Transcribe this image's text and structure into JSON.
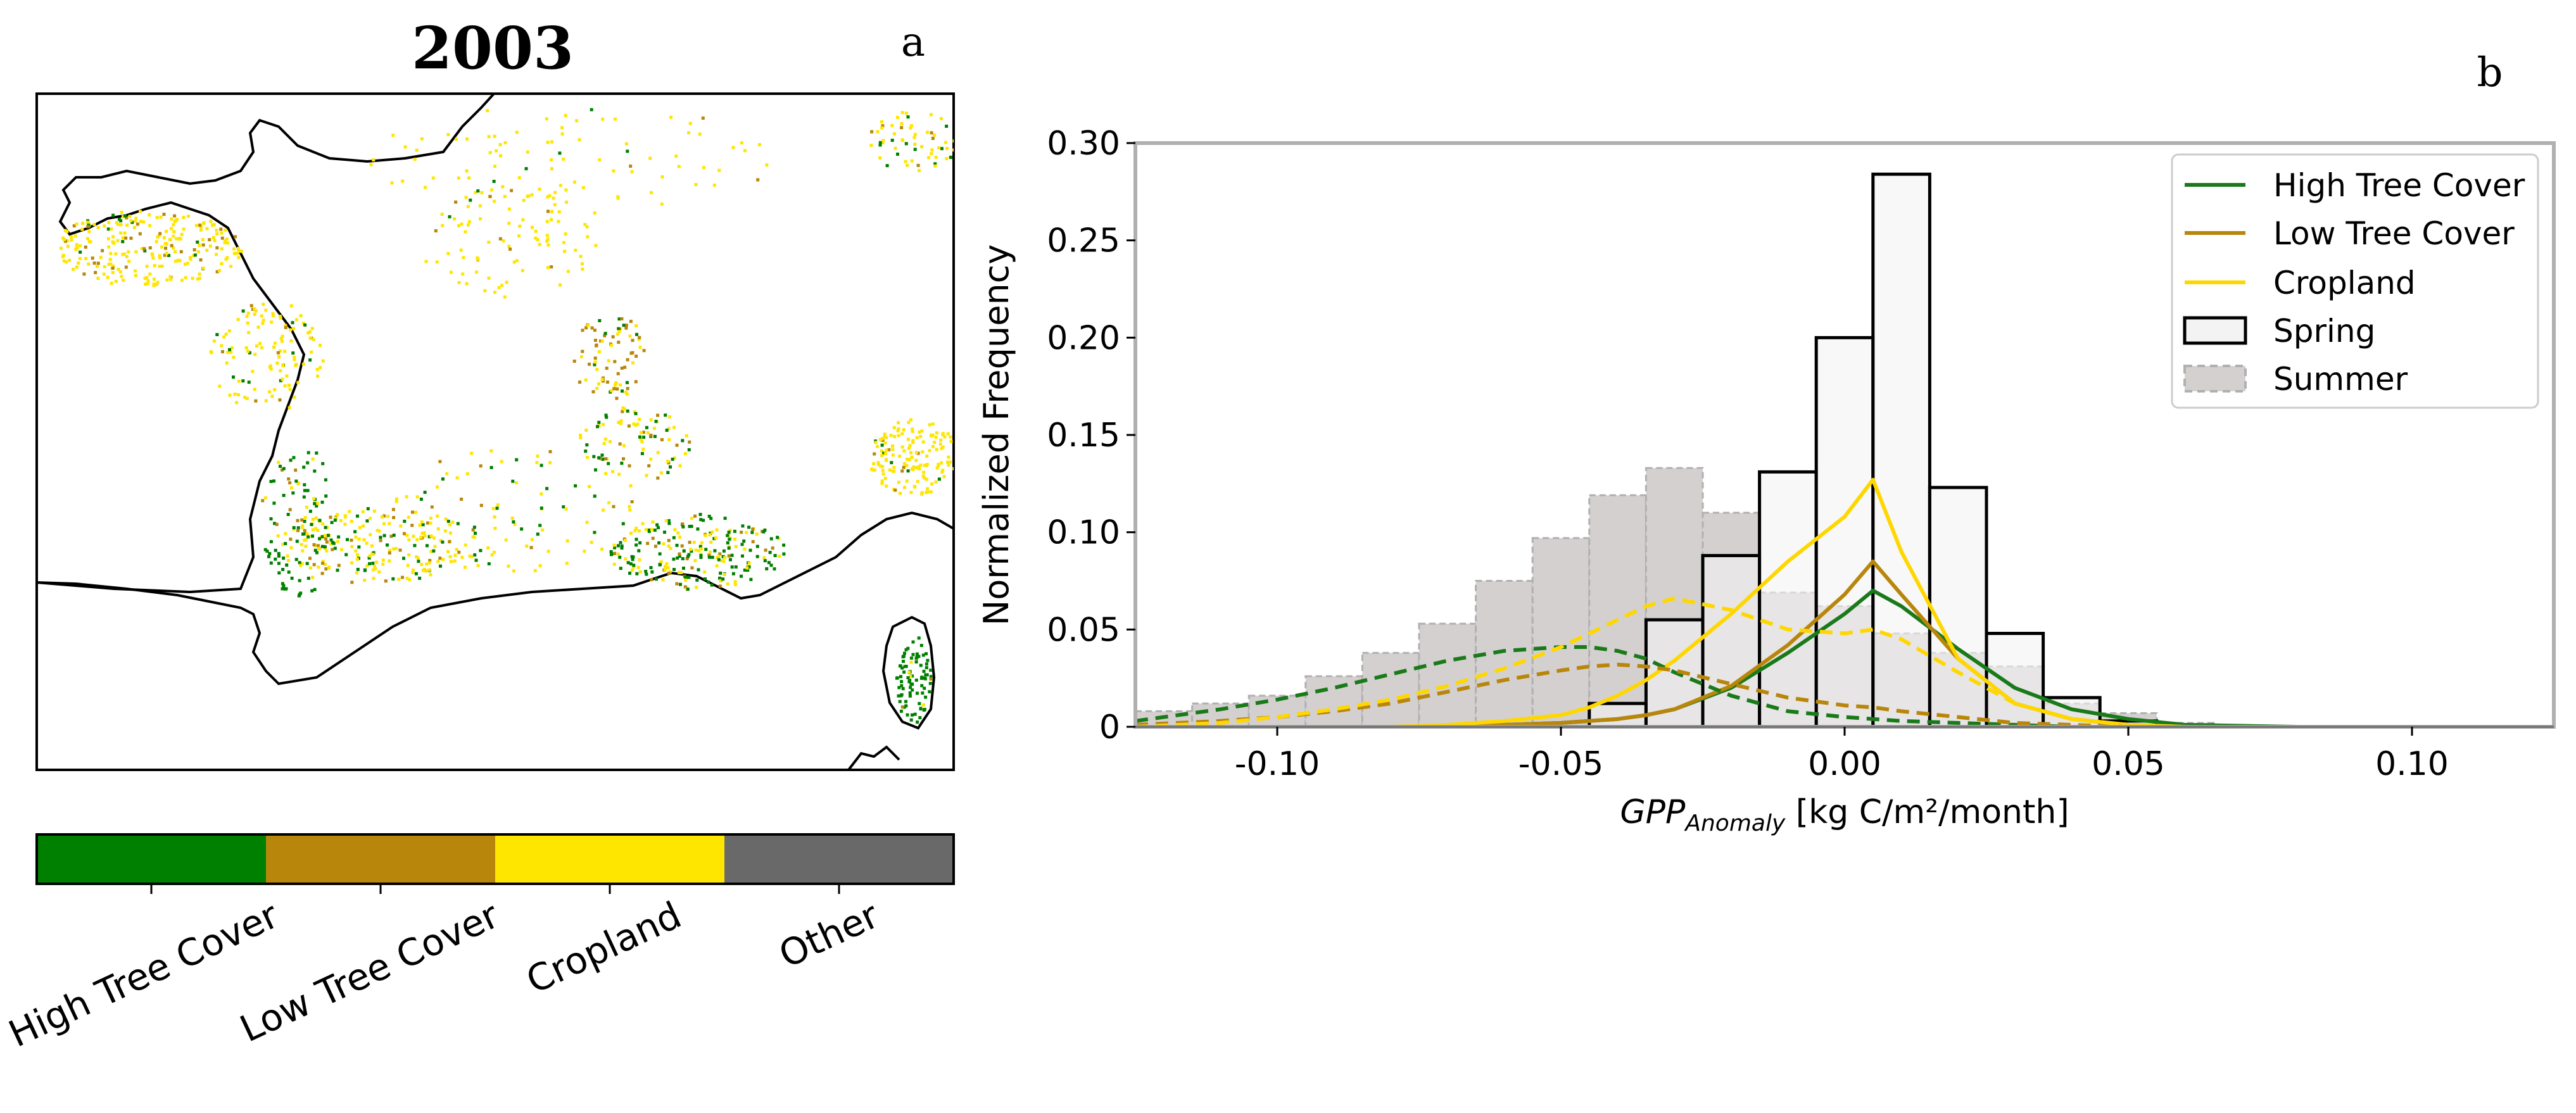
{
  "chart_data": [
    {
      "type": "map",
      "panel_label": "a",
      "title": "2003",
      "colorbar": {
        "categories": [
          {
            "label": "High Tree Cover",
            "color": "#008000"
          },
          {
            "label": "Low Tree Cover",
            "color": "#b8860b"
          },
          {
            "label": "Cropland",
            "color": "#ffe600"
          },
          {
            "label": "Other",
            "color": "#696969"
          }
        ]
      }
    },
    {
      "type": "bar",
      "panel_label": "b",
      "xlabel_main": "GPP",
      "xlabel_sub": "Anomaly",
      "xlabel_units": " [kg C/m²/month]",
      "ylabel": "Normalized  Frequency",
      "xlim": [
        -0.125,
        0.125
      ],
      "ylim": [
        0,
        0.3
      ],
      "xticks": [
        -0.1,
        -0.05,
        0.0,
        0.05,
        0.1
      ],
      "xtick_labels": [
        "-0.10",
        "-0.05",
        "0.00",
        "0.05",
        "0.10"
      ],
      "yticks": [
        0,
        0.05,
        0.1,
        0.15,
        0.2,
        0.25,
        0.3
      ],
      "ytick_labels": [
        "0",
        "0.05",
        "0.10",
        "0.15",
        "0.20",
        "0.25",
        "0.30"
      ],
      "bin_width": 0.01,
      "bin_starts": [
        -0.125,
        -0.115,
        -0.105,
        -0.095,
        -0.085,
        -0.075,
        -0.065,
        -0.055,
        -0.045,
        -0.035,
        -0.025,
        -0.015,
        -0.005,
        0.005,
        0.015,
        0.025,
        0.035,
        0.045,
        0.055,
        0.065
      ],
      "spring": [
        0,
        0,
        0,
        0,
        0,
        0,
        0,
        0,
        0.012,
        0.055,
        0.088,
        0.131,
        0.2,
        0.284,
        0.123,
        0.048,
        0.015,
        0.003,
        0.001,
        0
      ],
      "summer": [
        0.008,
        0.012,
        0.016,
        0.026,
        0.038,
        0.053,
        0.075,
        0.097,
        0.119,
        0.133,
        0.11,
        0.069,
        0.062,
        0.048,
        0.038,
        0.031,
        0.012,
        0.007,
        0.002,
        0
      ],
      "curve_x": [
        -0.125,
        -0.11,
        -0.1,
        -0.09,
        -0.08,
        -0.07,
        -0.06,
        -0.05,
        -0.045,
        -0.04,
        -0.035,
        -0.03,
        -0.02,
        -0.01,
        0.0,
        0.005,
        0.01,
        0.02,
        0.03,
        0.04,
        0.05,
        0.06,
        0.08,
        0.1,
        0.125
      ],
      "series": [
        {
          "name": "High Tree Cover",
          "color": "#1a7a1a",
          "style": "solid",
          "values": [
            0,
            0,
            0,
            0,
            0,
            0,
            0.001,
            0.002,
            0.003,
            0.004,
            0.006,
            0.009,
            0.02,
            0.038,
            0.058,
            0.07,
            0.062,
            0.04,
            0.02,
            0.009,
            0.004,
            0.001,
            0,
            0,
            0
          ]
        },
        {
          "name": "Low Tree Cover",
          "color": "#b8860b",
          "style": "solid",
          "values": [
            0,
            0,
            0,
            0,
            0,
            0,
            0.001,
            0.002,
            0.003,
            0.004,
            0.006,
            0.009,
            0.021,
            0.042,
            0.068,
            0.085,
            0.068,
            0.035,
            0.012,
            0.004,
            0.001,
            0,
            0,
            0,
            0
          ]
        },
        {
          "name": "Cropland",
          "color": "#ffd700",
          "style": "solid",
          "values": [
            0,
            0,
            0,
            0,
            0,
            0.001,
            0.003,
            0.006,
            0.01,
            0.016,
            0.024,
            0.034,
            0.058,
            0.085,
            0.108,
            0.127,
            0.09,
            0.035,
            0.012,
            0.004,
            0.001,
            0,
            0,
            0,
            0
          ]
        },
        {
          "name": "High Tree Cover (Summer)",
          "color": "#1a7a1a",
          "style": "dashed",
          "values": [
            0.003,
            0.009,
            0.014,
            0.02,
            0.027,
            0.034,
            0.039,
            0.041,
            0.041,
            0.039,
            0.035,
            0.028,
            0.016,
            0.008,
            0.005,
            0.004,
            0.003,
            0.002,
            0.001,
            0,
            0,
            0,
            0,
            0,
            0
          ]
        },
        {
          "name": "Low Tree Cover (Summer)",
          "color": "#b8860b",
          "style": "dashed",
          "values": [
            0.001,
            0.003,
            0.005,
            0.008,
            0.012,
            0.018,
            0.024,
            0.029,
            0.031,
            0.032,
            0.031,
            0.029,
            0.022,
            0.015,
            0.011,
            0.01,
            0.008,
            0.005,
            0.002,
            0.001,
            0,
            0,
            0,
            0,
            0
          ]
        },
        {
          "name": "Cropland (Summer)",
          "color": "#ffd700",
          "style": "dashed",
          "values": [
            0,
            0.002,
            0.005,
            0.009,
            0.014,
            0.021,
            0.03,
            0.041,
            0.048,
            0.055,
            0.062,
            0.066,
            0.06,
            0.05,
            0.048,
            0.05,
            0.045,
            0.028,
            0.012,
            0.004,
            0.001,
            0,
            0,
            0,
            0
          ]
        }
      ],
      "legend": [
        {
          "label": "High Tree Cover",
          "kind": "line",
          "color": "#1a7a1a"
        },
        {
          "label": "Low Tree Cover",
          "kind": "line",
          "color": "#b8860b"
        },
        {
          "label": "Cropland",
          "kind": "line",
          "color": "#ffd700"
        },
        {
          "label": "Spring",
          "kind": "box",
          "color": "#f3f3f3",
          "edge": "#000000"
        },
        {
          "label": "Summer",
          "kind": "box-dashed",
          "color": "#d4d0d0",
          "edge": "#b0b0b0"
        }
      ],
      "legend_position": "top-right"
    }
  ]
}
